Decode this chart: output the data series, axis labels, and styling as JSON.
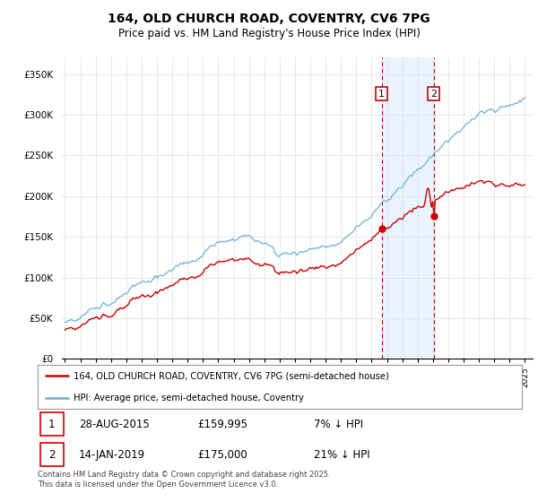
{
  "title_line1": "164, OLD CHURCH ROAD, COVENTRY, CV6 7PG",
  "title_line2": "Price paid vs. HM Land Registry's House Price Index (HPI)",
  "legend_line1": "164, OLD CHURCH ROAD, COVENTRY, CV6 7PG (semi-detached house)",
  "legend_line2": "HPI: Average price, semi-detached house, Coventry",
  "footer": "Contains HM Land Registry data © Crown copyright and database right 2025.\nThis data is licensed under the Open Government Licence v3.0.",
  "sale1_date": "28-AUG-2015",
  "sale1_price": "£159,995",
  "sale1_hpi": "7% ↓ HPI",
  "sale2_date": "14-JAN-2019",
  "sale2_price": "£175,000",
  "sale2_hpi": "21% ↓ HPI",
  "hpi_color": "#6baed6",
  "hpi_fill_color": "#ddeeff",
  "price_color": "#cc0000",
  "marker_box_color": "#cc0000",
  "vline_color": "#cc0000",
  "ylim_min": 0,
  "ylim_max": 370000,
  "yticks": [
    0,
    50000,
    100000,
    150000,
    200000,
    250000,
    300000,
    350000
  ],
  "ytick_labels": [
    "£0",
    "£50K",
    "£100K",
    "£150K",
    "£200K",
    "£250K",
    "£300K",
    "£350K"
  ],
  "sale1_x": 2015.65,
  "sale1_y": 159995,
  "sale2_x": 2019.04,
  "sale2_y": 175000,
  "shade_x1": 2015.65,
  "shade_x2": 2019.04,
  "xlim_min": 1994.8,
  "xlim_max": 2025.5
}
